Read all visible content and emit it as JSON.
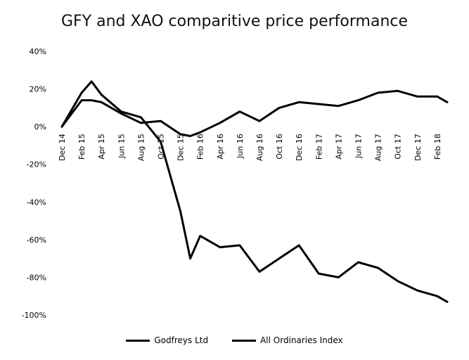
{
  "chart_data": {
    "type": "line",
    "title": "GFY and XAO comparitive price performance",
    "xlabel": "",
    "ylabel": "",
    "ylim": [
      -100,
      40
    ],
    "y_ticks": [
      40,
      20,
      0,
      -20,
      -40,
      -60,
      -80,
      -100
    ],
    "y_tick_labels": [
      "40%",
      "20%",
      "0%",
      "-20%",
      "-40%",
      "-60%",
      "-80%",
      "-100%"
    ],
    "x_tick_labels": [
      "Dec 14",
      "Feb 15",
      "Apr 15",
      "Jun 15",
      "Aug 15",
      "Oct 15",
      "Dec 15",
      "Feb 16",
      "Apr 16",
      "Jun 16",
      "Aug 16",
      "Oct 16",
      "Dec 16",
      "Feb 17",
      "Apr 17",
      "Jun 17",
      "Aug 17",
      "Oct 17",
      "Dec 17",
      "Feb 18"
    ],
    "grid": false,
    "legend_position": "bottom",
    "x_index": [
      0,
      1,
      1.5,
      2,
      3,
      4,
      5,
      6,
      6.5,
      7,
      8,
      9,
      10,
      11,
      12,
      13,
      14,
      15,
      16,
      17,
      18,
      19,
      19.5
    ],
    "series": [
      {
        "name": "Godfreys Ltd",
        "color": "#000000",
        "values": [
          0,
          18,
          24,
          17,
          8,
          5,
          -8,
          -45,
          -70,
          -58,
          -64,
          -63,
          -77,
          -70,
          -63,
          -78,
          -80,
          -72,
          -75,
          -82,
          -87,
          -90,
          -93
        ]
      },
      {
        "name": "All Ordinaries Index",
        "color": "#000000",
        "values": [
          0,
          14,
          14,
          13,
          7,
          2,
          3,
          -4,
          -5,
          -3,
          2,
          8,
          3,
          10,
          13,
          12,
          11,
          14,
          18,
          19,
          16,
          16,
          13
        ]
      }
    ]
  }
}
